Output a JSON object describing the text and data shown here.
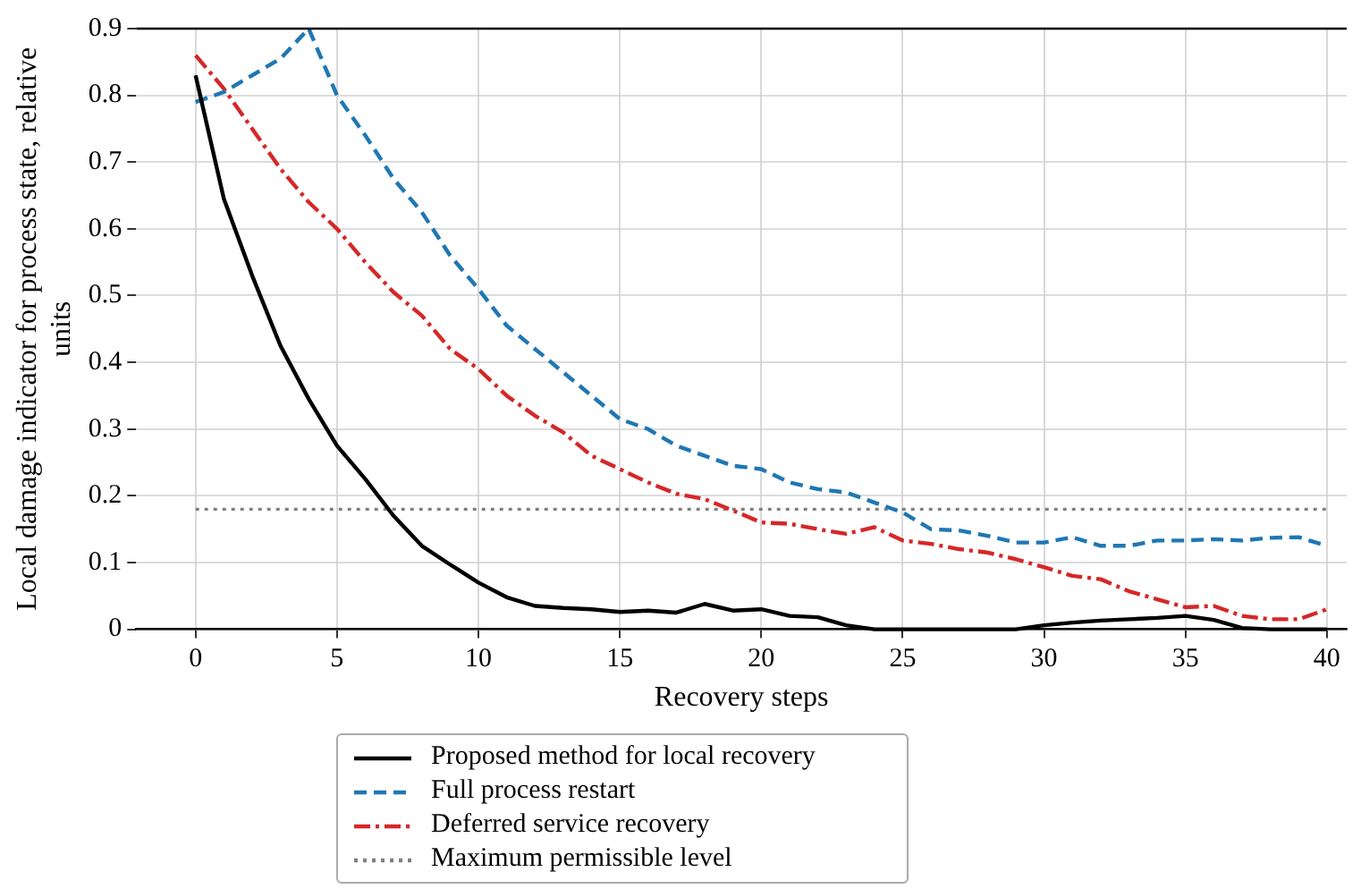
{
  "chart_data": {
    "type": "line",
    "xlabel": "Recovery steps",
    "ylabel": "Local damage indicator for process state, relative units",
    "x": [
      0,
      1,
      2,
      3,
      4,
      5,
      6,
      7,
      8,
      9,
      10,
      11,
      12,
      13,
      14,
      15,
      16,
      17,
      18,
      19,
      20,
      21,
      22,
      23,
      24,
      25,
      26,
      27,
      28,
      29,
      30,
      31,
      32,
      33,
      34,
      35,
      36,
      37,
      38,
      39,
      40
    ],
    "series": [
      {
        "name": "Proposed method for local recovery",
        "color": "#000000",
        "line_style": "solid",
        "values": [
          0.83,
          0.645,
          0.53,
          0.425,
          0.345,
          0.275,
          0.225,
          0.17,
          0.125,
          0.097,
          0.07,
          0.048,
          0.035,
          0.032,
          0.03,
          0.026,
          0.028,
          0.025,
          0.038,
          0.028,
          0.03,
          0.02,
          0.018,
          0.006,
          0,
          0,
          0,
          0,
          0,
          0,
          0.006,
          0.01,
          0.013,
          0.015,
          0.017,
          0.02,
          0.014,
          0.002,
          0,
          0,
          0
        ]
      },
      {
        "name": "Full process restart",
        "color": "#1f77b4",
        "line_style": "dashed",
        "values": [
          0.79,
          0.805,
          0.83,
          0.855,
          0.9,
          0.8,
          0.74,
          0.675,
          0.625,
          0.56,
          0.51,
          0.455,
          0.42,
          0.385,
          0.35,
          0.315,
          0.3,
          0.275,
          0.26,
          0.245,
          0.24,
          0.22,
          0.21,
          0.205,
          0.19,
          0.175,
          0.15,
          0.148,
          0.14,
          0.13,
          0.13,
          0.138,
          0.125,
          0.125,
          0.133,
          0.133,
          0.135,
          0.133,
          0.137,
          0.138,
          0.125
        ]
      },
      {
        "name": "Deferred service recovery",
        "color": "#d62728",
        "line_style": "dashdot",
        "values": [
          0.86,
          0.81,
          0.75,
          0.69,
          0.64,
          0.6,
          0.55,
          0.505,
          0.47,
          0.42,
          0.39,
          0.35,
          0.32,
          0.295,
          0.26,
          0.24,
          0.22,
          0.203,
          0.195,
          0.178,
          0.16,
          0.158,
          0.15,
          0.143,
          0.153,
          0.133,
          0.128,
          0.12,
          0.115,
          0.105,
          0.093,
          0.08,
          0.075,
          0.057,
          0.045,
          0.033,
          0.035,
          0.02,
          0.015,
          0.015,
          0.03
        ]
      }
    ],
    "ref_lines": [
      {
        "axis": "y",
        "value": 0.18,
        "label": "Maximum permissible level",
        "color": "#808080",
        "line_style": "dotted"
      }
    ],
    "xlim": [
      -2.1,
      40.7
    ],
    "xticks": [
      0,
      5,
      10,
      15,
      20,
      25,
      30,
      35,
      40
    ],
    "ylim": [
      0,
      0.9
    ],
    "yticks": [
      0,
      0.1,
      0.2,
      0.3,
      0.4,
      0.5,
      0.6,
      0.7,
      0.8,
      0.9
    ],
    "grid": true,
    "legend": "bottom",
    "marker": "none"
  }
}
